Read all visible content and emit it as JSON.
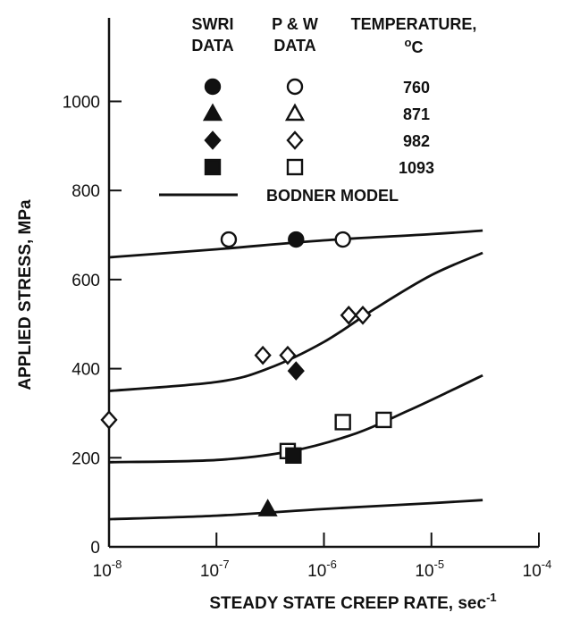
{
  "chart_data": {
    "type": "scatter",
    "x_scale": "log",
    "xlim": [
      1e-08,
      0.0001
    ],
    "ylim": [
      0,
      1100
    ],
    "xlabel": "STEADY STATE CREEP RATE, sec",
    "xlabel_exponent": "-1",
    "ylabel": "APPLIED STRESS, MPa",
    "y_ticks": [
      0,
      200,
      400,
      600,
      800,
      1000
    ],
    "x_ticks": [
      {
        "value": 1e-08,
        "base": "10",
        "exp": "-8"
      },
      {
        "value": 1e-07,
        "base": "10",
        "exp": "-7"
      },
      {
        "value": 1e-06,
        "base": "10",
        "exp": "-6"
      },
      {
        "value": 1e-05,
        "base": "10",
        "exp": "-5"
      },
      {
        "value": 0.0001,
        "base": "10",
        "exp": "-4"
      }
    ],
    "grid": false,
    "legend": {
      "placement": "top-right",
      "col_swri": [
        "SWRI",
        "DATA"
      ],
      "col_pw": [
        "P & W",
        "DATA"
      ],
      "col_temp": [
        "TEMPERATURE,"
      ],
      "temp_unit_super": "o",
      "temp_unit": "C",
      "rows": [
        {
          "temperature": "760",
          "marker": "circle"
        },
        {
          "temperature": "871",
          "marker": "triangle"
        },
        {
          "temperature": "982",
          "marker": "diamond"
        },
        {
          "temperature": "1093",
          "marker": "square"
        }
      ],
      "model_label": "BODNER MODEL"
    },
    "series": [
      {
        "temperature_C": 760,
        "marker": "circle",
        "swri": [
          {
            "x": 5.5e-07,
            "y": 690
          }
        ],
        "pw": [
          {
            "x": 1.3e-07,
            "y": 690
          },
          {
            "x": 1.5e-06,
            "y": 690
          }
        ],
        "model": [
          {
            "x": 1e-08,
            "y": 650
          },
          {
            "x": 1e-07,
            "y": 668
          },
          {
            "x": 1e-06,
            "y": 688
          },
          {
            "x": 1e-05,
            "y": 702
          },
          {
            "x": 3e-05,
            "y": 710
          }
        ]
      },
      {
        "temperature_C": 982,
        "marker": "diamond",
        "swri": [
          {
            "x": 5.5e-07,
            "y": 395
          }
        ],
        "pw": [
          {
            "x": 1e-08,
            "y": 285
          },
          {
            "x": 2.7e-07,
            "y": 430
          },
          {
            "x": 4.6e-07,
            "y": 430
          },
          {
            "x": 1.7e-06,
            "y": 520
          },
          {
            "x": 2.3e-06,
            "y": 520
          }
        ],
        "model": [
          {
            "x": 1e-08,
            "y": 350
          },
          {
            "x": 1e-07,
            "y": 370
          },
          {
            "x": 3e-07,
            "y": 400
          },
          {
            "x": 1e-06,
            "y": 460
          },
          {
            "x": 3e-06,
            "y": 535
          },
          {
            "x": 1e-05,
            "y": 610
          },
          {
            "x": 3e-05,
            "y": 660
          }
        ]
      },
      {
        "temperature_C": 1093,
        "marker": "square",
        "swri": [
          {
            "x": 5.2e-07,
            "y": 205
          }
        ],
        "pw": [
          {
            "x": 4.6e-07,
            "y": 215
          },
          {
            "x": 1.5e-06,
            "y": 280
          },
          {
            "x": 3.6e-06,
            "y": 285
          }
        ],
        "model": [
          {
            "x": 1e-08,
            "y": 190
          },
          {
            "x": 1e-07,
            "y": 195
          },
          {
            "x": 5e-07,
            "y": 215
          },
          {
            "x": 2e-06,
            "y": 255
          },
          {
            "x": 6e-06,
            "y": 305
          },
          {
            "x": 1.5e-05,
            "y": 350
          },
          {
            "x": 3e-05,
            "y": 385
          }
        ]
      },
      {
        "temperature_C": 871,
        "marker": "triangle",
        "swri": [
          {
            "x": 3e-07,
            "y": 85
          }
        ],
        "pw": [],
        "model": [
          {
            "x": 1e-08,
            "y": 62
          },
          {
            "x": 1e-07,
            "y": 70
          },
          {
            "x": 1e-06,
            "y": 85
          },
          {
            "x": 1e-05,
            "y": 98
          },
          {
            "x": 3e-05,
            "y": 105
          }
        ]
      }
    ]
  }
}
